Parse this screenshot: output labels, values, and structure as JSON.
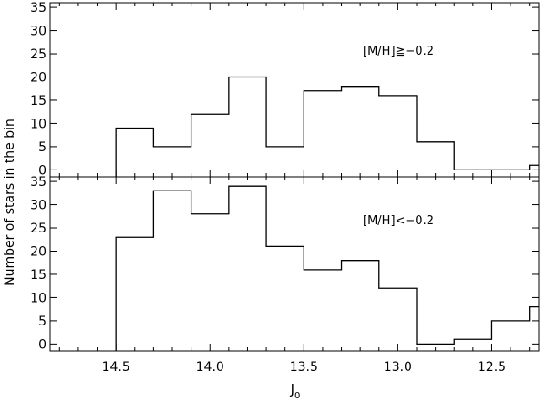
{
  "chart_data": [
    {
      "type": "histogram",
      "annotation": "[M/H]≧−0.2",
      "xlabel": "",
      "ylabel": "",
      "xlim": [
        14.85,
        12.25
      ],
      "ylim": [
        -1.5,
        36
      ],
      "yticks": [
        0,
        5,
        10,
        15,
        20,
        25,
        30,
        35
      ],
      "bin_edges": [
        14.5,
        14.3,
        14.1,
        13.9,
        13.7,
        13.5,
        13.3,
        13.1,
        12.9,
        12.7,
        12.5,
        12.3,
        12.25
      ],
      "counts": [
        9,
        5,
        12,
        20,
        5,
        17,
        18,
        16,
        6,
        0,
        0,
        1
      ],
      "baseline": -1.5
    },
    {
      "type": "histogram",
      "annotation": "[M/H]<−0.2",
      "xlabel": "J",
      "xlabel_subscript": "0",
      "ylabel": "",
      "xlim": [
        14.85,
        12.25
      ],
      "ylim": [
        -1.5,
        36
      ],
      "yticks": [
        0,
        5,
        10,
        15,
        20,
        25,
        30,
        35
      ],
      "xticks": [
        14.5,
        14.0,
        13.5,
        13.0,
        12.5
      ],
      "xtick_labels": [
        "14.5",
        "14.0",
        "13.5",
        "13.0",
        "12.5"
      ],
      "bin_edges": [
        14.5,
        14.3,
        14.1,
        13.9,
        13.7,
        13.5,
        13.3,
        13.1,
        12.9,
        12.7,
        12.5,
        12.3,
        12.25
      ],
      "counts": [
        23,
        33,
        28,
        34,
        21,
        16,
        18,
        12,
        0,
        1,
        5,
        8
      ],
      "baseline": -1.5
    }
  ],
  "shared_ylabel": "Number of stars in the bin",
  "line_color": "#000000"
}
